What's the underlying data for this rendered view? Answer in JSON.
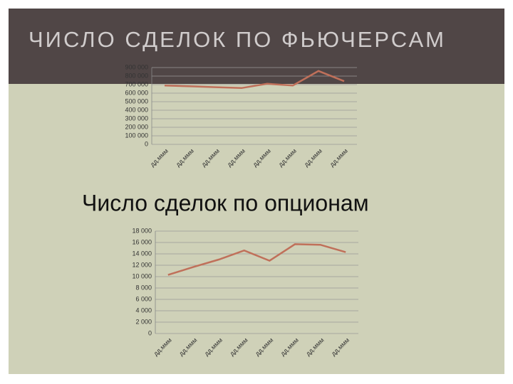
{
  "chart_data": [
    {
      "type": "line",
      "title": "ЧИСЛО СДЕЛОК ПО ФЬЮЧЕРСАМ",
      "categories": [
        "дд.ммм",
        "дд.ммм",
        "дд.ммм",
        "дд.ммм",
        "дд.ммм",
        "дд.ммм",
        "дд.ммм",
        "дд.ммм"
      ],
      "series": [
        {
          "color": "#c0705a",
          "values": [
            690000,
            680000,
            670000,
            660000,
            710000,
            690000,
            860000,
            740000
          ]
        }
      ],
      "ylim": [
        0,
        900000
      ],
      "yticks": [
        0,
        {
          "value": 100000,
          "label": "100 000"
        },
        {
          "value": 200000,
          "label": "200 000"
        },
        {
          "value": 300000,
          "label": "300 000"
        },
        {
          "value": 400000,
          "label": "400 000"
        },
        {
          "value": 500000,
          "label": "500 000"
        },
        {
          "value": 600000,
          "label": "600 000"
        },
        {
          "value": 700000,
          "label": "700 000"
        },
        {
          "value": 800000,
          "label": "800 000"
        },
        {
          "value": 900000,
          "label": "900 000"
        }
      ],
      "grid": true
    },
    {
      "type": "line",
      "title": "Число сделок по опционам",
      "categories": [
        "дд.ммм",
        "дд.ммм",
        "дд.ммм",
        "дд.ммм",
        "дд.ммм",
        "дд.ммм",
        "дд.ммм",
        "дд.ммм"
      ],
      "series": [
        {
          "color": "#c0705a",
          "values": [
            10300,
            11700,
            13000,
            14600,
            12800,
            15700,
            15600,
            14300
          ]
        }
      ],
      "ylim": [
        0,
        18000
      ],
      "yticks": [
        0,
        {
          "value": 2000,
          "label": "2 000"
        },
        {
          "value": 4000,
          "label": "4 000"
        },
        {
          "value": 6000,
          "label": "6 000"
        },
        {
          "value": 8000,
          "label": "8 000"
        },
        {
          "value": 10000,
          "label": "10 000"
        },
        {
          "value": 12000,
          "label": "12 000"
        },
        {
          "value": 14000,
          "label": "14 000"
        },
        {
          "value": 16000,
          "label": "16 000"
        },
        {
          "value": 18000,
          "label": "18 000"
        }
      ],
      "grid": true
    }
  ]
}
